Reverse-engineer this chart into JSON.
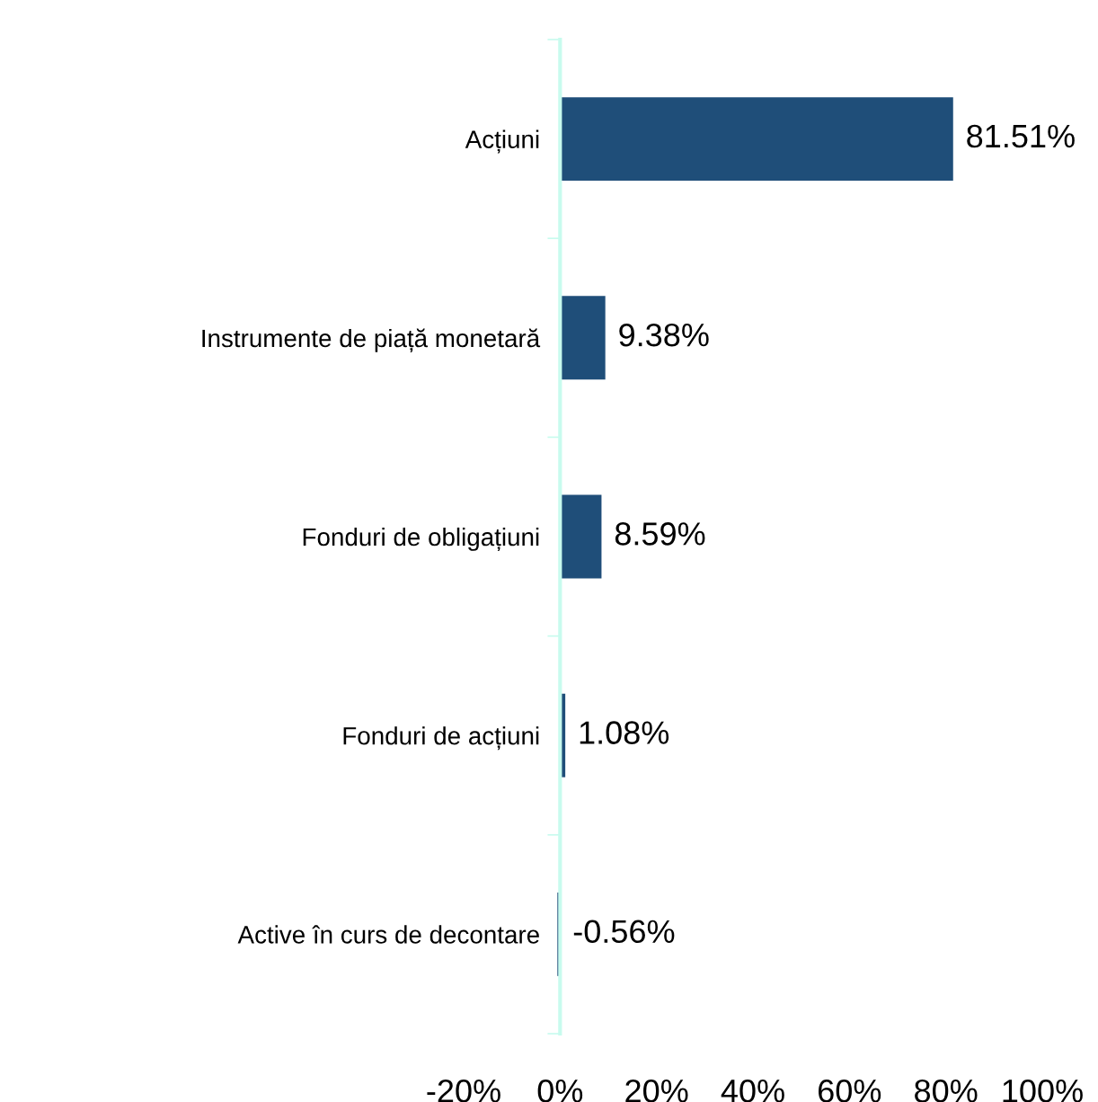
{
  "chart_data": {
    "type": "bar",
    "orientation": "horizontal",
    "categories": [
      "Acțiuni",
      "Instrumente de piață monetară",
      "Fonduri de obligațiuni",
      "Fonduri de acțiuni",
      "Active în curs de decontare"
    ],
    "values": [
      81.51,
      9.38,
      8.59,
      1.08,
      -0.56
    ],
    "color": "#1f4e79",
    "value_labels": [
      "81.51%",
      "9.38%",
      "8.59%",
      "1.08%",
      "-0.56%"
    ],
    "xlim": [
      -20,
      100
    ],
    "xticks": [
      {
        "value": -20,
        "label": "-20%"
      },
      {
        "value": 0,
        "label": "0%"
      },
      {
        "value": 20,
        "label": "20%"
      },
      {
        "value": 40,
        "label": "40%"
      },
      {
        "value": 60,
        "label": "60%"
      },
      {
        "value": 80,
        "label": "80%"
      },
      {
        "value": 100,
        "label": "100%"
      }
    ],
    "grid": false,
    "legend": false
  }
}
